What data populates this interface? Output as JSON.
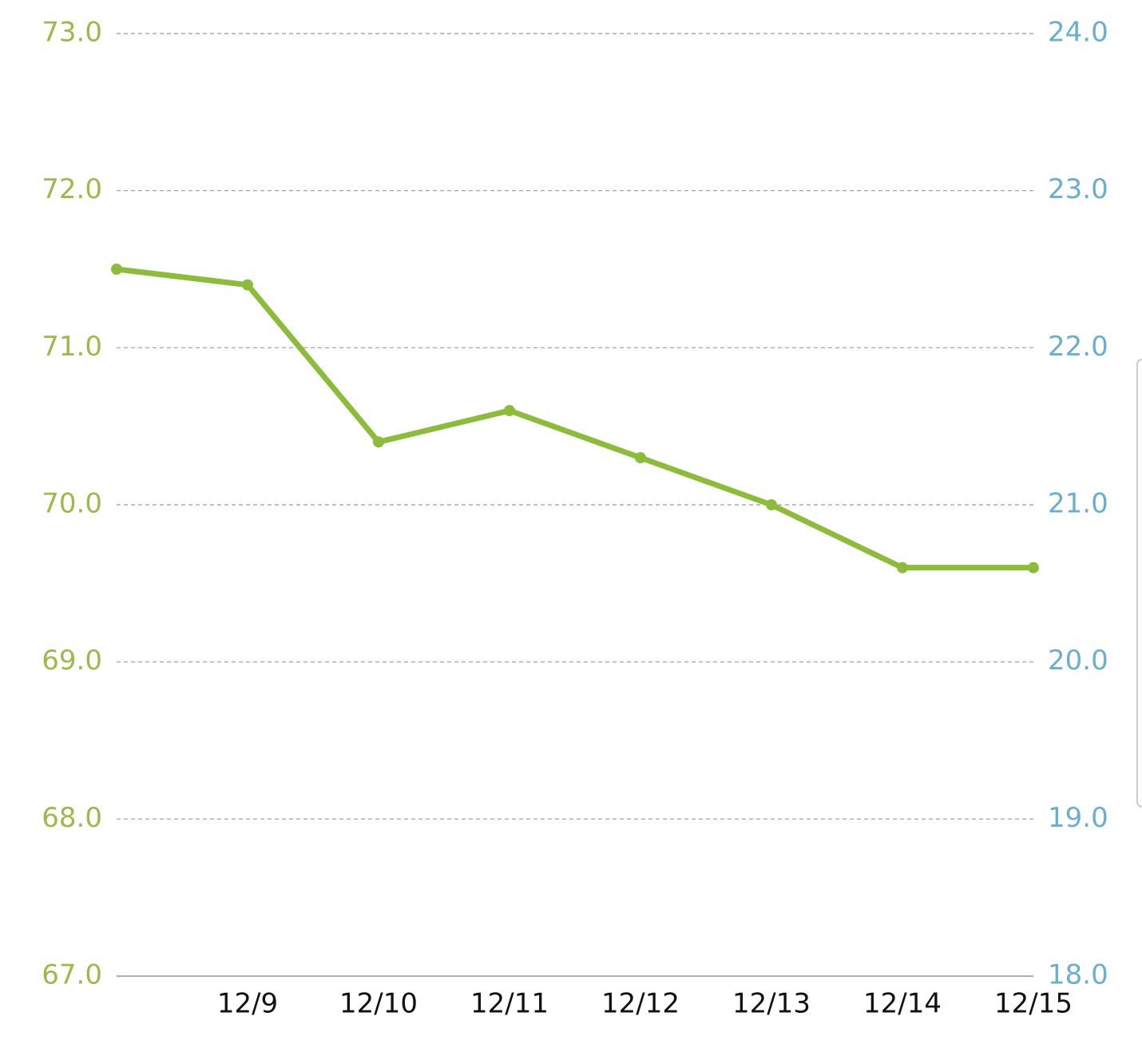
{
  "chart_data": {
    "type": "line",
    "categories": [
      null,
      "12/9",
      "12/10",
      "12/11",
      "12/12",
      "12/13",
      "12/14",
      "12/15"
    ],
    "values": [
      71.5,
      71.4,
      70.4,
      70.6,
      70.3,
      70.0,
      69.6,
      69.6
    ],
    "color": "#8dbc3c",
    "ylim": [
      67,
      73
    ],
    "yticks": [
      {
        "value": 67,
        "label": "67.0"
      },
      {
        "value": 68,
        "label": "68.0"
      },
      {
        "value": 69,
        "label": "69.0"
      },
      {
        "value": 70,
        "label": "70.0"
      },
      {
        "value": 71,
        "label": "71.0"
      },
      {
        "value": 72,
        "label": "72.0"
      },
      {
        "value": 73,
        "label": "73.0"
      }
    ],
    "y_tick_color": "#9cba4c",
    "y2lim": [
      18,
      24
    ],
    "y2ticks": [
      {
        "value": 18,
        "label": "18.0"
      },
      {
        "value": 19,
        "label": "19.0"
      },
      {
        "value": 20,
        "label": "20.0"
      },
      {
        "value": 21,
        "label": "21.0"
      },
      {
        "value": 22,
        "label": "22.0"
      },
      {
        "value": 23,
        "label": "23.0"
      },
      {
        "value": 24,
        "label": "24.0"
      }
    ],
    "y2_tick_color": "#6aaed0",
    "grid": true
  }
}
